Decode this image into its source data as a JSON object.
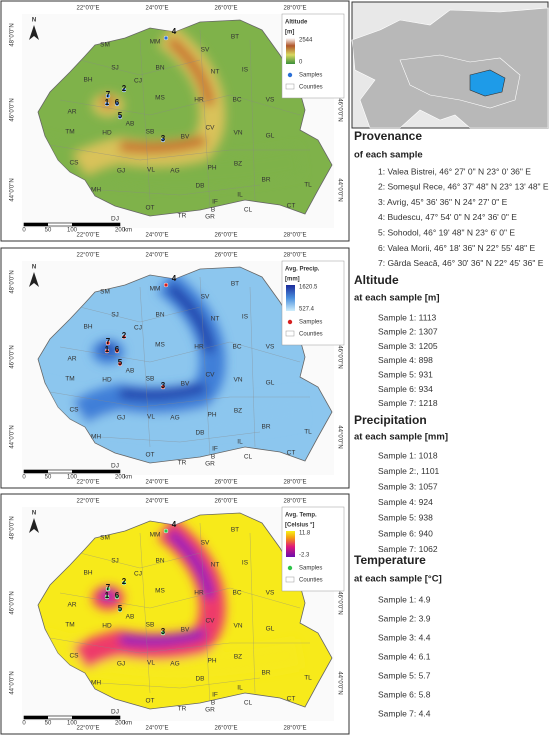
{
  "map_common": {
    "north": "N",
    "lon_labels": [
      "22°0'0\"E",
      "24°0'0\"E",
      "26°0'0\"E",
      "28°0'0\"E"
    ],
    "lat_labels": [
      "48°0'0\"N",
      "46°0'0\"N",
      "44°0'0\"N"
    ],
    "scale_labels": [
      "0",
      "50",
      "100",
      "200",
      "km"
    ],
    "counties": [
      "SM",
      "MM",
      "SV",
      "BT",
      "SJ",
      "BN",
      "NT",
      "IS",
      "BH",
      "CJ",
      "MS",
      "HR",
      "BC",
      "VS",
      "AR",
      "AB",
      "CV",
      "TM",
      "SB",
      "BV",
      "VN",
      "GL",
      "HD",
      "CS",
      "GJ",
      "VL",
      "AG",
      "PH",
      "BZ",
      "BR",
      "TL",
      "MH",
      "DB",
      "IF",
      "B",
      "IL",
      "OT",
      "TR",
      "GR",
      "CL",
      "CT",
      "DJ"
    ],
    "samples": [
      "1",
      "2",
      "3",
      "4",
      "5",
      "6",
      "7"
    ]
  },
  "maps": [
    {
      "legend": {
        "title": "Altitude",
        "unit": "[m]",
        "max": 2544,
        "min": 0,
        "samples": "Samples",
        "counties": "Counties"
      }
    },
    {
      "legend": {
        "title": "Avg. Precip.",
        "unit": "[mm]",
        "max": 1620.5,
        "min": 527.4,
        "samples": "Samples",
        "counties": "Counties"
      }
    },
    {
      "legend": {
        "title": "Avg. Temp.",
        "unit": "[Celsius °]",
        "max": 11.8,
        "min": -2.3,
        "samples": "Samples",
        "counties": "Counties"
      }
    }
  ],
  "sections": [
    {
      "heading": "Provenance",
      "subheading": "of each sample",
      "items": [
        "1: Valea Bistrei, 46° 27' 0\" N 23° 0' 36\" E",
        "2: Someşul Rece, 46° 37' 48\" N 23° 13' 48\" E",
        "3: Avrig, 45° 36' 36\" N 24° 27' 0\" E",
        "4: Budescu, 47° 54' 0\" N 24° 36' 0\" E",
        "5: Sohodol, 46° 19' 48\" N 23° 6' 0\" E",
        "6: Valea Morii, 46° 18' 36\" N 22° 55' 48\" E",
        "7: Gârda Seacă, 46° 30' 36\" N 22° 45' 36\" E"
      ]
    },
    {
      "heading": "Altitude",
      "subheading": "at each sample [m]",
      "items": [
        "Sample 1: 1113",
        "Sample 2: 1307",
        "Sample 3: 1205",
        "Sample 4: 898",
        "Sample 5: 931",
        "Sample 6: 934",
        "Sample 7: 1218"
      ]
    },
    {
      "heading": "Precipitation",
      "subheading": "at each sample [mm]",
      "items": [
        "Sample 1: 1018",
        "Sample 2:, 1101",
        "Sample 3: 1057",
        "Sample 4: 924",
        "Sample 5: 938",
        "Sample 6: 940",
        "Sample 7: 1062"
      ]
    },
    {
      "heading": "Temperature",
      "subheading": "at each sample [°C]",
      "items": [
        "Sample 1: 4.9",
        "Sample 2: 3.9",
        "Sample 3: 4.4",
        "Sample 4: 6.1",
        "Sample 5: 5.7",
        "Sample 6: 5.8",
        "Sample 7: 4.4"
      ]
    }
  ]
}
